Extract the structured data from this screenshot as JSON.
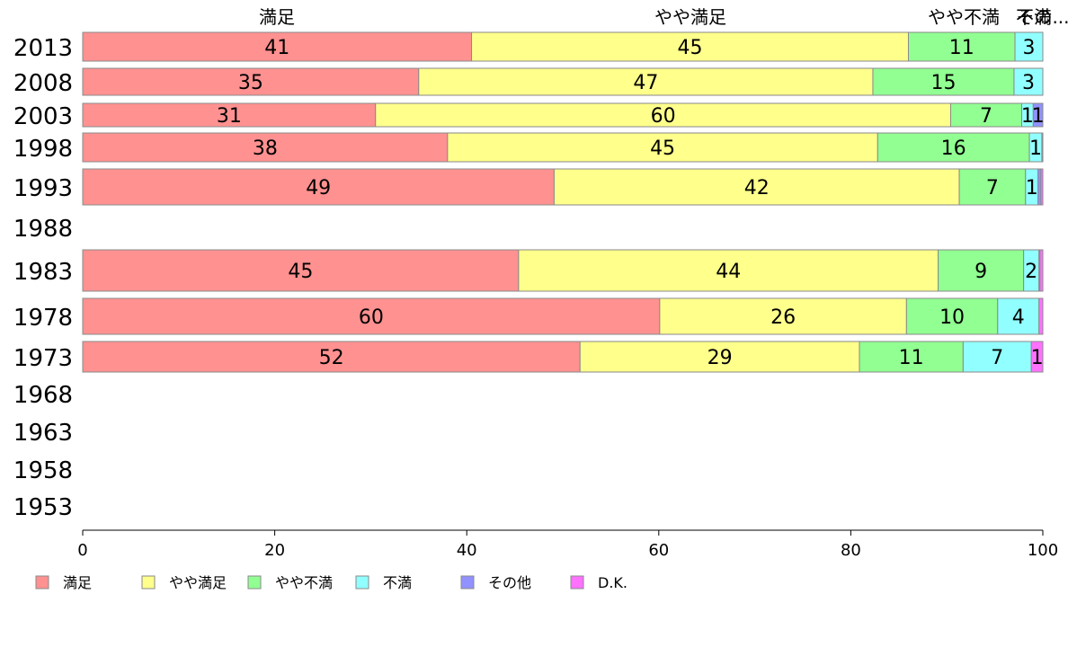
{
  "chart_data": {
    "type": "bar",
    "orientation": "horizontal",
    "stacked": true,
    "column_headers": [
      "満足",
      "やや満足",
      "やや不満",
      "不満",
      "その..."
    ],
    "categories": [
      "2013",
      "2008",
      "2003",
      "1998",
      "1993",
      "1988",
      "1983",
      "1978",
      "1973",
      "1968",
      "1963",
      "1958",
      "1953"
    ],
    "series": [
      {
        "name": "満足",
        "color": "#ff9190",
        "values": [
          40.5,
          35.0,
          30.5,
          38.0,
          49.1,
          null,
          45.4,
          60.1,
          51.8,
          null,
          null,
          null,
          null
        ]
      },
      {
        "name": "やや満足",
        "color": "#ffff8c",
        "values": [
          45.5,
          47.3,
          59.9,
          44.8,
          42.2,
          null,
          43.7,
          25.7,
          29.1,
          null,
          null,
          null,
          null
        ]
      },
      {
        "name": "やや不満",
        "color": "#91ff91",
        "values": [
          11.1,
          14.7,
          7.4,
          15.8,
          6.9,
          null,
          8.9,
          9.5,
          10.8,
          null,
          null,
          null,
          null
        ]
      },
      {
        "name": "不満",
        "color": "#91ffff",
        "values": [
          2.9,
          3.0,
          1.2,
          1.3,
          1.3,
          null,
          1.6,
          4.3,
          7.1,
          null,
          null,
          null,
          null
        ]
      },
      {
        "name": "その他",
        "color": "#9191ff",
        "values": [
          0.0,
          0.0,
          1.0,
          0.1,
          0.3,
          null,
          0.1,
          0.0,
          0.0,
          null,
          null,
          null,
          null
        ]
      },
      {
        "name": "D.K.",
        "color": "#ff71ff",
        "values": [
          0.0,
          0.0,
          0.0,
          0.0,
          0.2,
          null,
          0.3,
          0.4,
          1.2,
          null,
          null,
          null,
          null
        ]
      }
    ],
    "data_labels": [
      [
        "41",
        "45",
        "11",
        "3",
        "",
        ""
      ],
      [
        "35",
        "47",
        "15",
        "3",
        "",
        ""
      ],
      [
        "31",
        "60",
        "7",
        "1",
        "1",
        ""
      ],
      [
        "38",
        "45",
        "16",
        "1",
        "",
        ""
      ],
      [
        "49",
        "42",
        "7",
        "1",
        "",
        ""
      ],
      [
        "",
        "",
        "",
        "",
        "",
        ""
      ],
      [
        "45",
        "44",
        "9",
        "2",
        "",
        ""
      ],
      [
        "60",
        "26",
        "10",
        "4",
        "",
        ""
      ],
      [
        "52",
        "29",
        "11",
        "7",
        "",
        "1"
      ],
      [
        "",
        "",
        "",
        "",
        "",
        ""
      ],
      [
        "",
        "",
        "",
        "",
        "",
        ""
      ],
      [
        "",
        "",
        "",
        "",
        "",
        ""
      ],
      [
        "",
        "",
        "",
        "",
        "",
        ""
      ]
    ],
    "xlim": [
      0,
      100
    ],
    "xticks": [
      "0",
      "20",
      "40",
      "60",
      "80",
      "100"
    ],
    "grid": false,
    "legend_position": "bottom"
  }
}
